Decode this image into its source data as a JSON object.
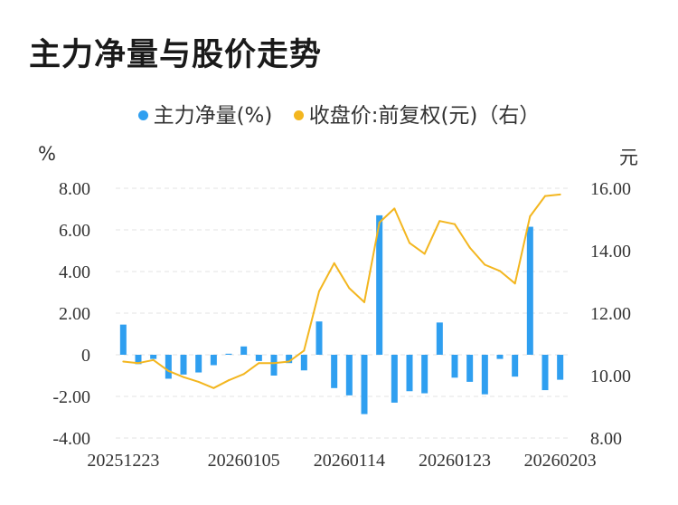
{
  "title": "主力净量与股价走势",
  "legend": {
    "net": "主力净量(%)",
    "price": "收盘价:前复权(元)（右）"
  },
  "units": {
    "left": "%",
    "right": "元"
  },
  "colors": {
    "bar": "#2f9ff0",
    "line": "#f3b61f",
    "grid": "#e3e3e3",
    "text": "#333333"
  },
  "chart_data": {
    "type": "bar+line",
    "x": [
      "20251223",
      "20251224",
      "20251225",
      "20251226",
      "20251229",
      "20251230",
      "20251231",
      "20260102",
      "20260105",
      "20260106",
      "20260107",
      "20260108",
      "20260109",
      "20260112",
      "20260113",
      "20260114",
      "20260115",
      "20260116",
      "20260119",
      "20260120",
      "20260121",
      "20260122",
      "20260123",
      "20260126",
      "20260127",
      "20260128",
      "20260129",
      "20260130",
      "20260202",
      "20260203"
    ],
    "xticks": [
      "20251223",
      "20260105",
      "20260114",
      "20260123",
      "20260203"
    ],
    "series": [
      {
        "name": "主力净量(%)",
        "axis": "left",
        "type": "bar",
        "values": [
          1.45,
          -0.45,
          -0.2,
          -1.15,
          -0.95,
          -0.85,
          -0.5,
          0.05,
          0.4,
          -0.3,
          -1.0,
          -0.4,
          -0.75,
          1.6,
          -1.6,
          -1.95,
          -2.85,
          6.7,
          -2.3,
          -1.75,
          -1.85,
          1.55,
          -1.1,
          -1.3,
          -1.9,
          -0.2,
          -1.05,
          6.15,
          -1.7,
          -1.2
        ]
      },
      {
        "name": "收盘价:前复权(元)（右）",
        "axis": "right",
        "type": "line",
        "values": [
          10.45,
          10.4,
          10.5,
          10.15,
          9.95,
          9.8,
          9.6,
          9.85,
          10.05,
          10.4,
          10.4,
          10.45,
          10.8,
          12.7,
          13.6,
          12.8,
          12.35,
          14.9,
          15.35,
          14.25,
          13.9,
          14.95,
          14.85,
          14.1,
          13.55,
          13.35,
          12.95,
          15.1,
          15.75,
          15.8
        ]
      }
    ],
    "yleft": {
      "ticks": [
        "8.00",
        "6.00",
        "4.00",
        "2.00",
        "0",
        "-2.00",
        "-4.00"
      ],
      "range": [
        -4,
        8
      ]
    },
    "yright": {
      "ticks": [
        "16.00",
        "14.00",
        "12.00",
        "10.00",
        "8.00"
      ],
      "range": [
        8,
        16
      ]
    },
    "grid": "horizontal dashed"
  }
}
